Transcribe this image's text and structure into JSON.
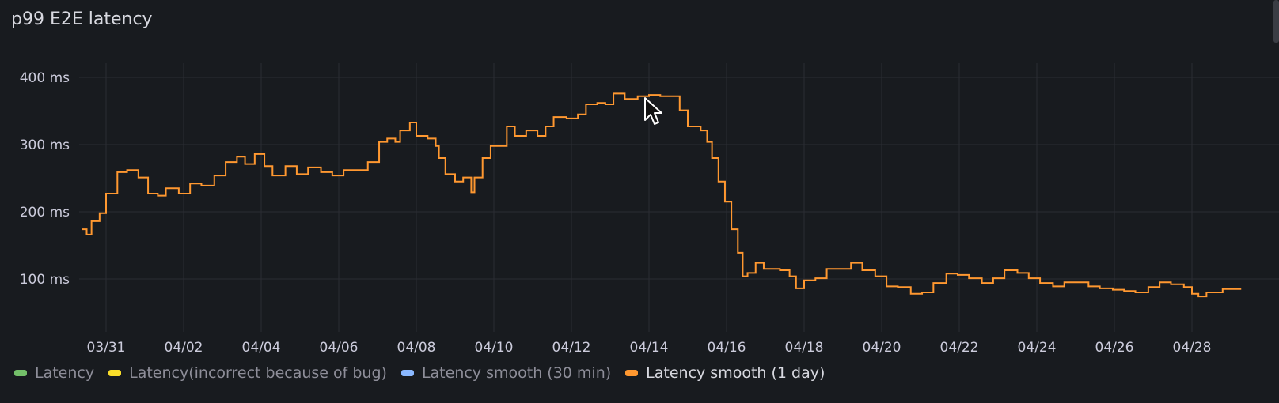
{
  "panel": {
    "title": "p99 E2E latency"
  },
  "legend": [
    {
      "label": "Latency",
      "color": "#73bf69",
      "active": false
    },
    {
      "label": "Latency(incorrect because of bug)",
      "color": "#fade2a",
      "active": false
    },
    {
      "label": "Latency smooth (30 min)",
      "color": "#8ab8ff",
      "active": false
    },
    {
      "label": "Latency smooth (1 day)",
      "color": "#ff9830",
      "active": true
    }
  ],
  "chart_data": {
    "type": "line",
    "title": "p99 E2E latency",
    "y_unit": "ms",
    "ylim": [
      20,
      425
    ],
    "yticks": [
      "100 ms",
      "200 ms",
      "300 ms",
      "400 ms"
    ],
    "ytick_values": [
      100,
      200,
      300,
      400
    ],
    "xticks": [
      "03/31",
      "04/02",
      "04/04",
      "04/06",
      "04/08",
      "04/10",
      "04/12",
      "04/14",
      "04/16",
      "04/18",
      "04/20",
      "04/22",
      "04/24",
      "04/26",
      "04/28"
    ],
    "xlim": [
      "03/30 09:00",
      "04/29 06:00"
    ],
    "grid": true,
    "legend_position": "bottom",
    "interpolation": "step-after",
    "series": [
      {
        "name": "Latency smooth (1 day)",
        "color": "#ff9830",
        "x": [
          "03/30 09:00",
          "03/30 12:00",
          "03/30 15:00",
          "03/30 20:00",
          "03/31 00:00",
          "03/31 07:00",
          "03/31 13:00",
          "03/31 20:00",
          "04/01 02:00",
          "04/01 08:00",
          "04/01 13:00",
          "04/01 21:00",
          "04/02 04:00",
          "04/02 11:00",
          "04/02 19:00",
          "04/03 02:00",
          "04/03 09:00",
          "04/03 14:00",
          "04/03 20:00",
          "04/04 02:00",
          "04/04 07:00",
          "04/04 15:00",
          "04/04 22:00",
          "04/05 05:00",
          "04/05 13:00",
          "04/05 20:00",
          "04/06 03:00",
          "04/06 11:00",
          "04/06 18:00",
          "04/07 01:00",
          "04/07 06:00",
          "04/07 11:00",
          "04/07 14:00",
          "04/07 20:00",
          "04/08 00:00",
          "04/08 07:00",
          "04/08 12:00",
          "04/08 14:00",
          "04/08 18:00",
          "04/09 00:00",
          "04/09 05:00",
          "04/09 10:00",
          "04/09 12:00",
          "04/09 17:00",
          "04/09 22:00",
          "04/10 03:00",
          "04/10 08:00",
          "04/10 13:00",
          "04/10 20:00",
          "04/11 03:00",
          "04/11 08:00",
          "04/11 13:00",
          "04/11 21:00",
          "04/12 04:00",
          "04/12 09:00",
          "04/12 16:00",
          "04/12 21:00",
          "04/13 02:00",
          "04/13 09:00",
          "04/13 17:00",
          "04/14 00:00",
          "04/14 07:00",
          "04/14 14:00",
          "04/14 19:00",
          "04/15 00:00",
          "04/15 08:00",
          "04/15 12:00",
          "04/15 15:00",
          "04/15 19:00",
          "04/15 23:00",
          "04/16 03:00",
          "04/16 07:00",
          "04/16 10:00",
          "04/16 13:00",
          "04/16 18:00",
          "04/16 23:00",
          "04/17 09:00",
          "04/17 15:00",
          "04/17 19:00",
          "04/18 00:00",
          "04/18 07:00",
          "04/18 14:00",
          "04/18 22:00",
          "04/19 05:00",
          "04/19 12:00",
          "04/19 20:00",
          "04/20 03:00",
          "04/20 10:00",
          "04/20 18:00",
          "04/21 01:00",
          "04/21 08:00",
          "04/21 16:00",
          "04/21 23:00",
          "04/22 06:00",
          "04/22 14:00",
          "04/22 21:00",
          "04/23 04:00",
          "04/23 12:00",
          "04/23 19:00",
          "04/24 02:00",
          "04/24 10:00",
          "04/24 17:00",
          "04/25 00:00",
          "04/25 08:00",
          "04/25 15:00",
          "04/25 23:00",
          "04/26 06:00",
          "04/26 13:00",
          "04/26 21:00",
          "04/27 04:00",
          "04/27 11:00",
          "04/27 19:00",
          "04/28 00:00",
          "04/28 04:00",
          "04/28 09:00",
          "04/28 19:00",
          "04/29 06:00"
        ],
        "y": [
          174,
          166,
          186,
          198,
          227,
          259,
          262,
          251,
          227,
          224,
          235,
          227,
          242,
          239,
          254,
          274,
          282,
          271,
          286,
          268,
          254,
          268,
          256,
          266,
          259,
          254,
          262,
          262,
          274,
          304,
          309,
          304,
          321,
          333,
          313,
          309,
          298,
          280,
          256,
          245,
          251,
          229,
          251,
          280,
          298,
          298,
          327,
          313,
          321,
          313,
          327,
          341,
          339,
          345,
          360,
          362,
          360,
          376,
          368,
          372,
          374,
          372,
          372,
          351,
          327,
          321,
          304,
          280,
          245,
          215,
          174,
          139,
          104,
          109,
          124,
          115,
          113,
          104,
          86,
          98,
          101,
          115,
          115,
          124,
          113,
          104,
          89,
          88,
          78,
          80,
          94,
          108,
          106,
          101,
          94,
          101,
          113,
          109,
          101,
          94,
          89,
          95,
          95,
          89,
          86,
          84,
          82,
          80,
          88,
          95,
          92,
          88,
          78,
          74,
          80,
          85,
          86
        ]
      }
    ]
  }
}
